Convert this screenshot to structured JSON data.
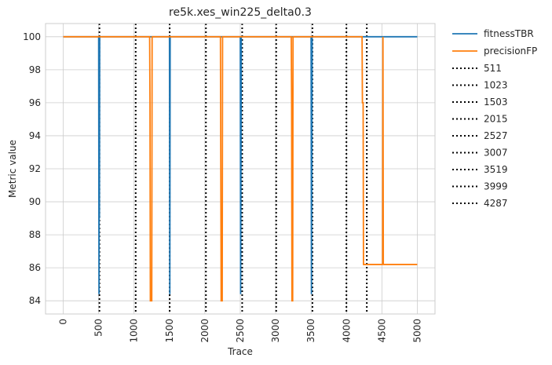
{
  "chart_data": {
    "type": "line",
    "title": "re5k.xes_win225_delta0.3",
    "xlabel": "Trace",
    "ylabel": "Metric value",
    "xlim": [
      -250,
      5250
    ],
    "ylim": [
      83.2,
      100.8
    ],
    "xticks": [
      0,
      500,
      1000,
      1500,
      2000,
      2500,
      3000,
      3500,
      4000,
      4500,
      5000
    ],
    "yticks": [
      84,
      86,
      88,
      90,
      92,
      94,
      96,
      98,
      100
    ],
    "grid": true,
    "legend_position": "outside-right",
    "series": [
      {
        "name": "fitnessTBR",
        "color": "#1f77b4",
        "points": [
          [
            0,
            100
          ],
          [
            500,
            100
          ],
          [
            505,
            84.4
          ],
          [
            510,
            100
          ],
          [
            511,
            89
          ],
          [
            515,
            100
          ],
          [
            1500,
            100
          ],
          [
            1505,
            84.4
          ],
          [
            1510,
            100
          ],
          [
            2500,
            100
          ],
          [
            2505,
            84.4
          ],
          [
            2515,
            100
          ],
          [
            3500,
            100
          ],
          [
            3505,
            84.4
          ],
          [
            3515,
            100
          ],
          [
            4500,
            100
          ],
          [
            5000,
            100
          ]
        ]
      },
      {
        "name": "precisionFP",
        "color": "#ff7f0e",
        "points": [
          [
            0,
            100
          ],
          [
            1220,
            100
          ],
          [
            1225,
            96
          ],
          [
            1230,
            84
          ],
          [
            1250,
            84
          ],
          [
            1255,
            100
          ],
          [
            2220,
            100
          ],
          [
            2225,
            92
          ],
          [
            2230,
            84
          ],
          [
            2245,
            84
          ],
          [
            2250,
            100
          ],
          [
            3220,
            100
          ],
          [
            3225,
            96
          ],
          [
            3230,
            84
          ],
          [
            3240,
            84
          ],
          [
            3245,
            100
          ],
          [
            4220,
            100
          ],
          [
            4225,
            96
          ],
          [
            4235,
            96
          ],
          [
            4240,
            86.2
          ],
          [
            4510,
            86.2
          ],
          [
            4515,
            100
          ],
          [
            4520,
            86.2
          ],
          [
            5000,
            86.2
          ]
        ]
      }
    ],
    "drift_lines": {
      "color": "#000000",
      "style": "dotted",
      "values": [
        511,
        1023,
        1503,
        2015,
        2527,
        3007,
        3519,
        3999,
        4287
      ],
      "labels": [
        "511",
        "1023",
        "1503",
        "2015",
        "2527",
        "3007",
        "3519",
        "3999",
        "4287"
      ]
    }
  }
}
